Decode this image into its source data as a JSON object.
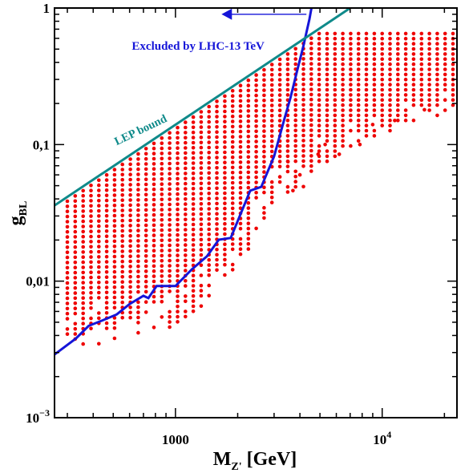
{
  "chart_data": {
    "type": "scatter",
    "x_scale": "log",
    "y_scale": "log",
    "xlim": [
      260,
      23000
    ],
    "ylim": [
      0.001,
      1
    ],
    "x_ticks": [
      {
        "value": 1000,
        "label": "1000"
      },
      {
        "value": 10000,
        "label": "10",
        "sup": "4"
      }
    ],
    "y_ticks": [
      {
        "value": 1,
        "label": "1"
      },
      {
        "value": 0.1,
        "label": "0,1"
      },
      {
        "value": 0.01,
        "label": "0,01"
      },
      {
        "value": 0.001,
        "label": "10",
        "sup": "−3"
      }
    ],
    "xlabel": {
      "main": "M",
      "sub": "Z'",
      "unit": " [GeV]"
    },
    "ylabel": {
      "main": "g",
      "sub": "BL"
    },
    "colors": {
      "points": "#ee0000",
      "lhc_curve": "#1515d8",
      "lep_line": "#0f8a8a"
    },
    "series": [
      {
        "kind": "points",
        "grid": {
          "x_start": 300,
          "x_end": 22000,
          "n_columns": 50,
          "y_ratio": 1.09
        },
        "lep_ratio": 0.93,
        "y_cap": 0.65,
        "lower_edge": [
          {
            "x": 300,
            "y": 0.0035
          },
          {
            "x": 380,
            "y": 0.0035
          },
          {
            "x": 650,
            "y": 0.0036
          },
          {
            "x": 1000,
            "y": 0.0048
          },
          {
            "x": 1400,
            "y": 0.007
          },
          {
            "x": 2000,
            "y": 0.013
          },
          {
            "x": 2500,
            "y": 0.022
          },
          {
            "x": 3000,
            "y": 0.04
          },
          {
            "x": 4000,
            "y": 0.045
          },
          {
            "x": 4800,
            "y": 0.07
          },
          {
            "x": 6000,
            "y": 0.08
          },
          {
            "x": 8000,
            "y": 0.1
          },
          {
            "x": 12000,
            "y": 0.13
          },
          {
            "x": 22000,
            "y": 0.18
          }
        ],
        "lower_sparse_below": 0.004
      },
      {
        "kind": "line",
        "points": [
          {
            "x": 260,
            "y": 0.0029
          },
          {
            "x": 330,
            "y": 0.0038
          },
          {
            "x": 380,
            "y": 0.0047
          },
          {
            "x": 450,
            "y": 0.0052
          },
          {
            "x": 520,
            "y": 0.0057
          },
          {
            "x": 600,
            "y": 0.0068
          },
          {
            "x": 700,
            "y": 0.0078
          },
          {
            "x": 740,
            "y": 0.0075
          },
          {
            "x": 810,
            "y": 0.0092
          },
          {
            "x": 1000,
            "y": 0.0092
          },
          {
            "x": 1200,
            "y": 0.0122
          },
          {
            "x": 1420,
            "y": 0.0152
          },
          {
            "x": 1620,
            "y": 0.0201
          },
          {
            "x": 1850,
            "y": 0.0207
          },
          {
            "x": 2300,
            "y": 0.046
          },
          {
            "x": 2600,
            "y": 0.049
          },
          {
            "x": 3000,
            "y": 0.082
          },
          {
            "x": 3350,
            "y": 0.15
          },
          {
            "x": 3600,
            "y": 0.22
          },
          {
            "x": 3900,
            "y": 0.36
          },
          {
            "x": 4150,
            "y": 0.52
          },
          {
            "x": 4450,
            "y": 0.83
          },
          {
            "x": 4550,
            "y": 1.0
          }
        ]
      },
      {
        "kind": "line",
        "points": [
          {
            "x": 260,
            "y": 0.0358
          },
          {
            "x": 7000,
            "y": 1.0
          }
        ]
      }
    ],
    "annotations": [
      {
        "id": "lhc",
        "text": "Excluded by LHC-13 TeV",
        "x": 3500,
        "y": 0.55
      },
      {
        "id": "lep",
        "text": "LEP bound",
        "x": 690,
        "y": 0.121,
        "rotation": -25.5
      }
    ],
    "arrow": {
      "from": {
        "x": 4300,
        "y": 0.9
      },
      "to": {
        "x": 1670,
        "y": 0.9
      }
    }
  }
}
